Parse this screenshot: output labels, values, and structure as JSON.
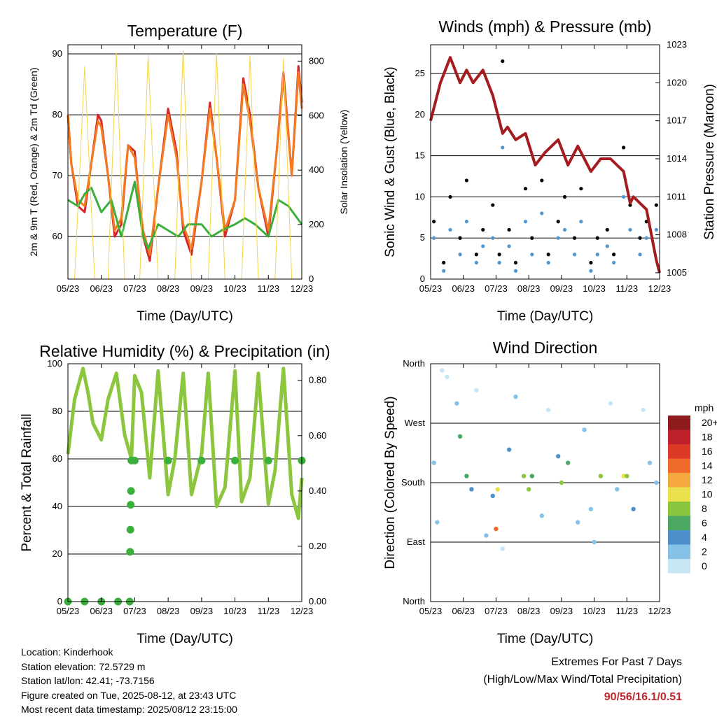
{
  "x_ticks": [
    "05/23",
    "06/23",
    "07/23",
    "08/23",
    "09/23",
    "10/23",
    "11/23",
    "12/23"
  ],
  "panels": {
    "temperature": {
      "title": "Temperature (F)",
      "ylabel": "2m & 9m T (Red, Orange) & 2m Td (Green)",
      "y2label": "Solar Insolation (Yellow)",
      "xlabel": "Time (Day/UTC)",
      "yticks": [
        "60",
        "70",
        "80",
        "90"
      ],
      "y2ticks": [
        "0",
        "200",
        "400",
        "600",
        "800"
      ]
    },
    "winds": {
      "title": "Winds (mph) & Pressure (mb)",
      "ylabel": "Sonic Wind & Gust (Blue, Black)",
      "y2label": "Station Pressure (Maroon)",
      "xlabel": "Time (Day/UTC)",
      "yticks": [
        "0",
        "5",
        "10",
        "15",
        "20",
        "25"
      ],
      "y2ticks": [
        "1005",
        "1008",
        "1011",
        "1014",
        "1017",
        "1020",
        "1023"
      ]
    },
    "humidity": {
      "title": "Relative Humidity (%) & Precipitation (in)",
      "ylabel": "Percent & Total Rainfall",
      "xlabel": "Time (Day/UTC)",
      "yticks": [
        "0",
        "20",
        "40",
        "60",
        "80",
        "100"
      ],
      "y2ticks": [
        "0.00",
        "0.20",
        "0.40",
        "0.60",
        "0.80"
      ]
    },
    "direction": {
      "title": "Wind Direction",
      "ylabel": "Direction (Colored By Speed)",
      "xlabel": "Time (Day/UTC)",
      "yticks": [
        "North",
        "East",
        "South",
        "West",
        "North"
      ],
      "legend_title": "mph",
      "legend_labels": [
        "0",
        "2",
        "4",
        "6",
        "8",
        "10",
        "12",
        "14",
        "16",
        "18",
        "20+"
      ],
      "legend_colors": [
        "#c6e6f6",
        "#86c2e8",
        "#4d8fc9",
        "#4ba862",
        "#8cc63f",
        "#e8e04c",
        "#f5a83d",
        "#ef6a2b",
        "#dc3a26",
        "#c0202a",
        "#8f1a1e"
      ]
    }
  },
  "chart_data": [
    {
      "type": "line",
      "title": "Temperature (F)",
      "xlabel": "Time (Day/UTC)",
      "x_ticks": [
        "05/23",
        "06/23",
        "07/23",
        "08/23",
        "09/23",
        "10/23",
        "11/23",
        "12/23"
      ],
      "xlim": [
        0,
        7
      ],
      "ylim": [
        53,
        91.5
      ],
      "y2lim": [
        0,
        860
      ],
      "series": [
        {
          "axis": "y",
          "color": "#d62728",
          "x": [
            0,
            0.1,
            0.3,
            0.5,
            0.7,
            0.9,
            1.0,
            1.2,
            1.4,
            1.6,
            1.8,
            2.0,
            2.1,
            2.25,
            2.45,
            2.7,
            3.0,
            3.25,
            3.45,
            3.7,
            4.0,
            4.25,
            4.45,
            4.7,
            5.0,
            5.25,
            5.45,
            5.7,
            6.0,
            6.25,
            6.45,
            6.7,
            6.9,
            7.0
          ],
          "y": [
            80,
            72,
            65,
            64,
            72,
            80,
            79,
            70,
            60,
            62,
            75,
            74,
            68,
            60,
            56,
            68,
            81,
            74,
            61,
            57,
            69,
            82,
            73,
            60,
            66,
            86,
            80,
            68,
            60,
            74,
            87,
            70,
            88,
            82
          ]
        },
        {
          "axis": "y",
          "color": "#f47a20",
          "x": [
            0,
            0.1,
            0.3,
            0.5,
            0.7,
            0.9,
            1.0,
            1.2,
            1.4,
            1.6,
            1.8,
            2.0,
            2.1,
            2.25,
            2.45,
            2.7,
            3.0,
            3.25,
            3.45,
            3.7,
            4.0,
            4.25,
            4.45,
            4.7,
            5.0,
            5.25,
            5.45,
            5.7,
            6.0,
            6.25,
            6.45,
            6.7,
            6.9,
            7.0
          ],
          "y": [
            80,
            72,
            66,
            65,
            72,
            79,
            78,
            70,
            61,
            63,
            75,
            73,
            68,
            61,
            57,
            68,
            80,
            73,
            62,
            58,
            69,
            81,
            73,
            61,
            66,
            85,
            79,
            68,
            61,
            74,
            86,
            70,
            87,
            81
          ]
        },
        {
          "axis": "y",
          "color": "#3cae3c",
          "x": [
            0,
            0.3,
            0.5,
            0.7,
            1.0,
            1.3,
            1.6,
            2.0,
            2.25,
            2.4,
            2.7,
            3.0,
            3.3,
            3.6,
            4.0,
            4.3,
            4.6,
            5.0,
            5.3,
            5.6,
            6.0,
            6.3,
            6.6,
            7.0
          ],
          "y": [
            66,
            65,
            67,
            68,
            64,
            66,
            60,
            69,
            60,
            58,
            62,
            61,
            60,
            62,
            62,
            60,
            61,
            62,
            63,
            62,
            60,
            66,
            65,
            62
          ]
        },
        {
          "axis": "y2",
          "color": "#f6d34a",
          "x": [
            0,
            0.2,
            0.5,
            0.8,
            1.0,
            1.2,
            1.45,
            1.7,
            2.0,
            2.15,
            2.4,
            2.7,
            3.0,
            3.2,
            3.45,
            3.7,
            4.0,
            4.2,
            4.45,
            4.7,
            5.0,
            5.2,
            5.45,
            5.7,
            6.0,
            6.2,
            6.45,
            6.7,
            7.0
          ],
          "y": [
            0,
            0,
            780,
            0,
            0,
            0,
            830,
            0,
            0,
            0,
            820,
            0,
            0,
            0,
            840,
            0,
            0,
            0,
            830,
            0,
            0,
            0,
            820,
            0,
            0,
            0,
            810,
            0,
            0
          ]
        }
      ]
    },
    {
      "type": "scatter",
      "title": "Winds (mph) & Pressure (mb)",
      "xlabel": "Time (Day/UTC)",
      "x_ticks": [
        "05/23",
        "06/23",
        "07/23",
        "08/23",
        "09/23",
        "10/23",
        "11/23",
        "12/23"
      ],
      "xlim": [
        0,
        7
      ],
      "ylim": [
        0,
        28.5
      ],
      "y2lim": [
        1004.5,
        1023
      ],
      "series": [
        {
          "axis": "y",
          "color": "#000000",
          "x": [
            0.1,
            0.4,
            0.6,
            0.9,
            1.1,
            1.4,
            1.6,
            1.9,
            2.1,
            2.2,
            2.4,
            2.6,
            2.9,
            3.1,
            3.4,
            3.6,
            3.9,
            4.1,
            4.4,
            4.6,
            4.9,
            5.1,
            5.4,
            5.6,
            5.9,
            6.1,
            6.4,
            6.6,
            6.9
          ],
          "y": [
            7,
            2,
            10,
            5,
            12,
            3,
            6,
            9,
            3,
            26.5,
            6,
            2,
            11,
            5,
            12,
            3,
            7,
            10,
            5,
            11,
            2,
            5,
            6,
            3,
            16,
            9,
            5,
            7,
            9
          ]
        },
        {
          "axis": "y",
          "color": "#4f96d0",
          "x": [
            0.1,
            0.4,
            0.6,
            0.9,
            1.1,
            1.4,
            1.6,
            1.9,
            2.1,
            2.2,
            2.4,
            2.6,
            2.9,
            3.1,
            3.4,
            3.6,
            3.9,
            4.1,
            4.4,
            4.6,
            4.9,
            5.1,
            5.4,
            5.6,
            5.9,
            6.1,
            6.4,
            6.6,
            6.9
          ],
          "y": [
            5,
            1,
            6,
            3,
            7,
            2,
            4,
            5,
            2,
            16,
            4,
            1,
            7,
            3,
            8,
            2,
            5,
            6,
            3,
            7,
            1,
            3,
            4,
            2,
            10,
            6,
            3,
            5,
            6
          ]
        },
        {
          "axis": "y2",
          "color": "#a51c1f",
          "x": [
            0,
            0.3,
            0.6,
            0.9,
            1.1,
            1.3,
            1.6,
            1.9,
            2.1,
            2.2,
            2.35,
            2.6,
            2.9,
            3.2,
            3.5,
            3.9,
            4.2,
            4.5,
            4.9,
            5.2,
            5.5,
            5.9,
            6.1,
            6.2,
            6.4,
            6.6,
            6.9,
            7.0
          ],
          "y": [
            1017,
            1020,
            1022,
            1020,
            1021,
            1020,
            1021,
            1019,
            1017,
            1016,
            1016.5,
            1015.5,
            1016,
            1013.5,
            1014.5,
            1015.5,
            1013.5,
            1015,
            1013,
            1014,
            1014,
            1013,
            1010.5,
            1011,
            1010.5,
            1010,
            1006,
            1005
          ]
        }
      ]
    },
    {
      "type": "line",
      "title": "Relative Humidity (%) & Precipitation (in)",
      "xlabel": "Time (Day/UTC)",
      "x_ticks": [
        "05/23",
        "06/23",
        "07/23",
        "08/23",
        "09/23",
        "10/23",
        "11/23",
        "12/23"
      ],
      "xlim": [
        0,
        7
      ],
      "ylim": [
        0,
        100
      ],
      "y2lim": [
        0,
        0.86
      ],
      "series": [
        {
          "axis": "y",
          "color": "#8cc63f",
          "x": [
            0,
            0.2,
            0.45,
            0.6,
            0.75,
            1.0,
            1.2,
            1.45,
            1.7,
            1.9,
            2.0,
            2.2,
            2.45,
            2.7,
            3.0,
            3.2,
            3.45,
            3.7,
            4.0,
            4.2,
            4.45,
            4.7,
            5.0,
            5.2,
            5.45,
            5.7,
            6.0,
            6.2,
            6.45,
            6.7,
            6.9,
            7.0
          ],
          "y": [
            62,
            85,
            98,
            88,
            75,
            68,
            85,
            96,
            70,
            60,
            95,
            88,
            52,
            97,
            45,
            60,
            96,
            45,
            62,
            96,
            40,
            48,
            97,
            42,
            52,
            96,
            41,
            55,
            98,
            45,
            35,
            52
          ]
        },
        {
          "axis": "y2",
          "color": "#3cae3c",
          "x": [
            0,
            0.5,
            1.0,
            1.5,
            1.85,
            1.86,
            1.87,
            1.88,
            1.89,
            1.9,
            2.0,
            3.0,
            4.0,
            5.0,
            6.0,
            7.0
          ],
          "y": [
            0,
            0,
            0,
            0,
            0,
            0.18,
            0.26,
            0.35,
            0.4,
            0.51,
            0.51,
            0.51,
            0.51,
            0.51,
            0.51,
            0.51
          ]
        }
      ]
    },
    {
      "type": "scatter",
      "title": "Wind Direction",
      "xlabel": "Time (Day/UTC)",
      "x_ticks": [
        "05/23",
        "06/23",
        "07/23",
        "08/23",
        "09/23",
        "10/23",
        "11/23",
        "12/23"
      ],
      "y_ticks": [
        "North",
        "East",
        "South",
        "West",
        "North"
      ],
      "xlim": [
        0,
        7
      ],
      "ylim": [
        0,
        360
      ],
      "legend": "mph color scale 0 to 20+",
      "series": [
        {
          "name": "",
          "x": [
            0.1,
            0.2,
            0.35,
            0.5,
            0.8,
            0.9,
            1.1,
            1.25,
            1.4,
            1.7,
            1.9,
            2.0,
            2.05,
            2.2,
            2.4,
            2.6,
            2.85,
            3.0,
            3.1,
            3.4,
            3.6,
            3.9,
            4.0,
            4.2,
            4.5,
            4.7,
            4.9,
            5.0,
            5.2,
            5.5,
            5.7,
            5.9,
            6.0,
            6.2,
            6.5,
            6.7,
            6.9
          ],
          "y": [
            210,
            120,
            350,
            340,
            300,
            250,
            190,
            170,
            320,
            100,
            160,
            110,
            170,
            80,
            230,
            310,
            190,
            170,
            190,
            130,
            290,
            220,
            180,
            210,
            120,
            260,
            140,
            90,
            190,
            300,
            170,
            190,
            190,
            140,
            290,
            210,
            180
          ],
          "speed": [
            3,
            2,
            1,
            1,
            2,
            6,
            6,
            4,
            1,
            2,
            4,
            14,
            10,
            1,
            4,
            2,
            8,
            8,
            6,
            3,
            1,
            4,
            8,
            6,
            2,
            3,
            3,
            2,
            8,
            1,
            3,
            10,
            8,
            4,
            1,
            3,
            2
          ]
        }
      ]
    }
  ],
  "info": {
    "location": "Location: Kinderhook",
    "elevation": "Station elevation: 72.5729 m",
    "latlon": "Station lat/lon: 42.41; -73.7156",
    "created": "Figure created on Tue, 2025-08-12, at 23:43 UTC",
    "recent": "Most recent data timestamp: 2025/08/12 23:15:00"
  },
  "extremes": {
    "title": "Extremes For Past 7 Days",
    "subtitle": "(High/Low/Max Wind/Total Precipitation)",
    "values": "90/56/16.1/0.51"
  }
}
